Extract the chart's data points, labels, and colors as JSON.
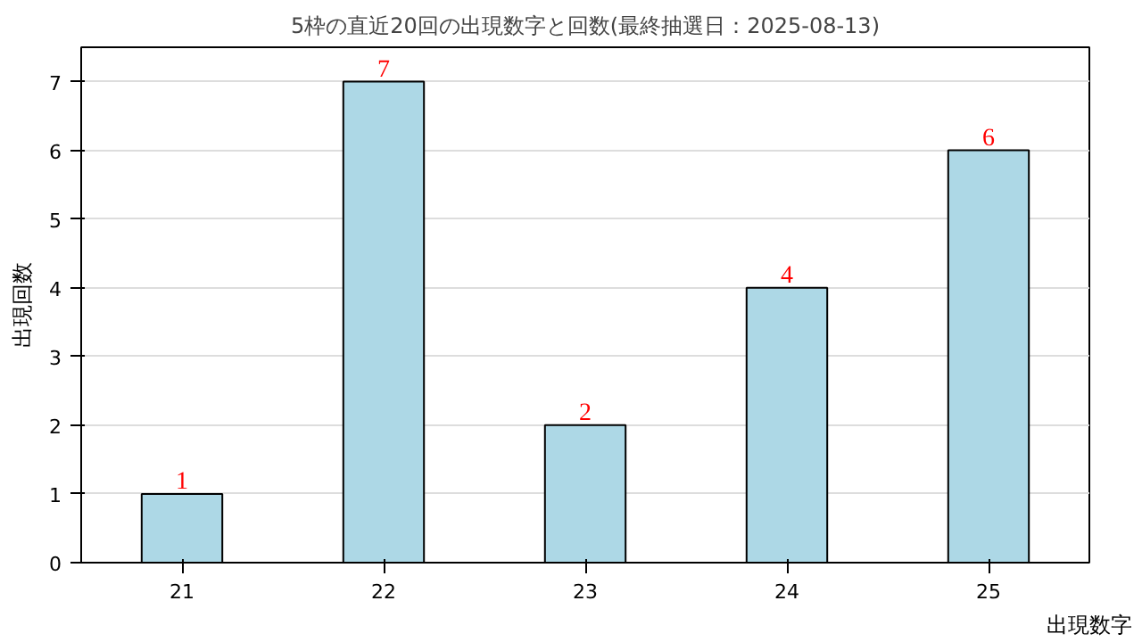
{
  "chart_data": {
    "type": "bar",
    "title": "5枠の直近20回の出現数字と回数(最終抽選日：2025-08-13)",
    "xlabel": "出現数字",
    "ylabel": "出現回数",
    "categories": [
      "21",
      "22",
      "23",
      "24",
      "25"
    ],
    "values": [
      1,
      7,
      2,
      4,
      6
    ],
    "color": "#add8e6",
    "ylim": [
      0,
      7.5
    ],
    "yticks": [
      0,
      1,
      2,
      3,
      4,
      5,
      6,
      7
    ],
    "grid": "y",
    "data_labels": true
  }
}
